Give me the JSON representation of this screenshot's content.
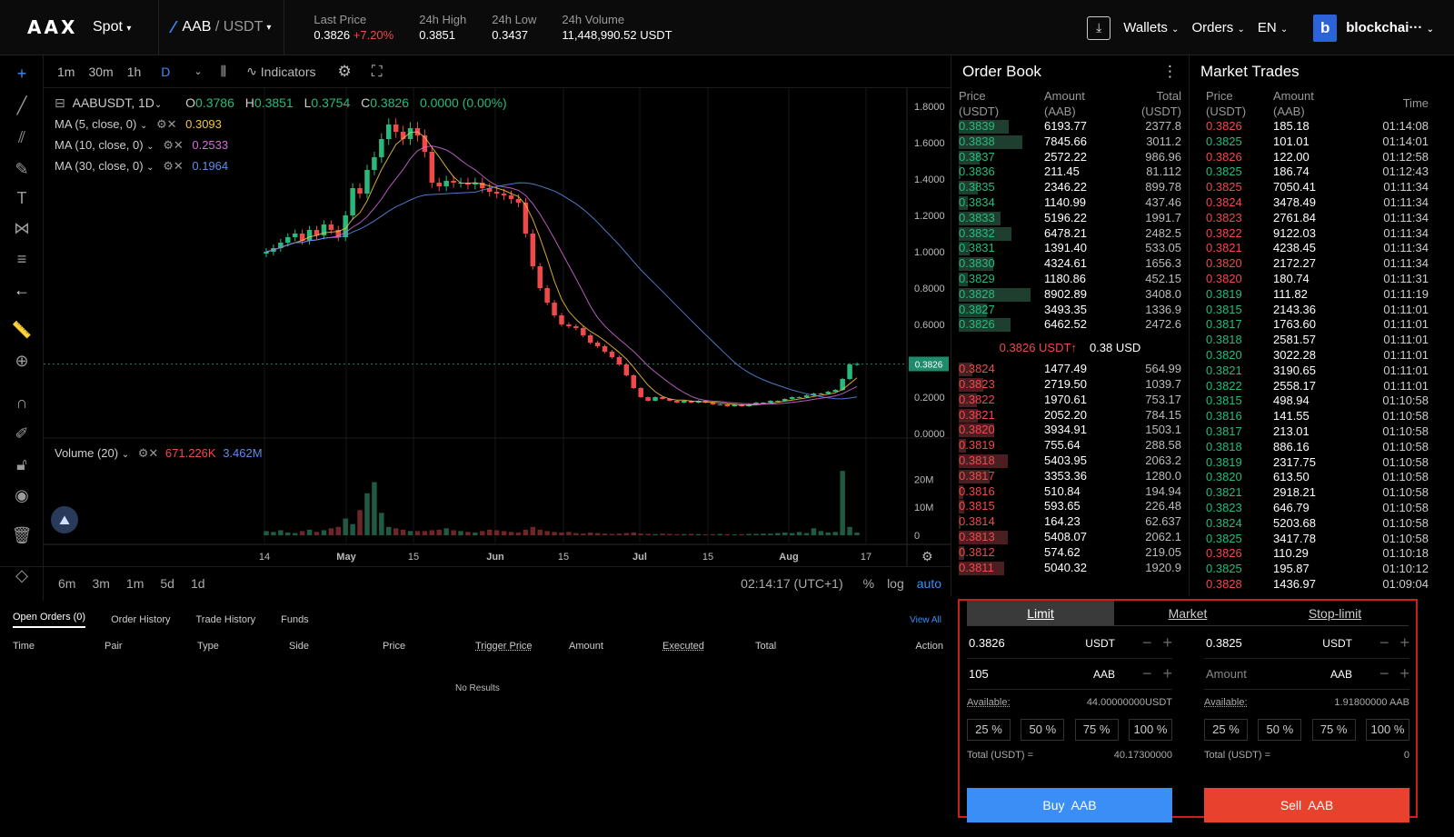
{
  "header": {
    "logo": "AAX",
    "market_type": "Spot",
    "pair_base": "AAB",
    "pair_quote": "USDT",
    "stats": [
      {
        "label": "Last Price",
        "value": "0.3826",
        "change": "+7.20%"
      },
      {
        "label": "24h High",
        "value": "0.3851"
      },
      {
        "label": "24h Low",
        "value": "0.3437"
      },
      {
        "label": "24h Volume",
        "value": "11,448,990.52 USDT"
      }
    ],
    "nav": {
      "wallets": "Wallets",
      "orders": "Orders",
      "lang": "EN"
    },
    "avatar_letter": "b",
    "account": "blockchai···"
  },
  "chart_toolbar": {
    "intervals": [
      "1m",
      "30m",
      "1h",
      "D"
    ],
    "active_interval": "D",
    "indicators": "Indicators"
  },
  "chart_legend": {
    "symbol": "AABUSDT, 1D",
    "open": "0.3786",
    "high": "0.3851",
    "low": "0.3754",
    "close": "0.3826",
    "change": "0.0000 (0.00%)",
    "ma": [
      {
        "label": "MA (5, close, 0)",
        "value": "0.3093",
        "color": "#f5c542"
      },
      {
        "label": "MA (10, close, 0)",
        "value": "0.2533",
        "color": "#d86adf"
      },
      {
        "label": "MA (30, close, 0)",
        "value": "0.1964",
        "color": "#5b8ee8"
      }
    ],
    "volume_label": "Volume (20)",
    "volume_values": [
      "671.226K",
      "3.462M"
    ]
  },
  "chart_data": {
    "type": "line",
    "ylim": [
      0,
      1.8
    ],
    "price_ticks": [
      "1.8000",
      "1.6000",
      "1.4000",
      "1.2000",
      "1.0000",
      "0.8000",
      "0.6000",
      "0.4000",
      "0.2000",
      "0.0000"
    ],
    "volume_ticks": [
      "20M",
      "10M",
      "0"
    ],
    "x_ticks": [
      "14",
      "May",
      "15",
      "Jun",
      "15",
      "Jul",
      "15",
      "Aug",
      "17"
    ],
    "current_price_label": "0.3826",
    "close": [
      1.0,
      1.02,
      1.05,
      1.08,
      1.1,
      1.06,
      1.12,
      1.09,
      1.15,
      1.12,
      1.08,
      1.2,
      1.35,
      1.32,
      1.45,
      1.52,
      1.62,
      1.7,
      1.66,
      1.62,
      1.68,
      1.64,
      1.55,
      1.38,
      1.36,
      1.39,
      1.38,
      1.38,
      1.37,
      1.38,
      1.35,
      1.33,
      1.32,
      1.31,
      1.29,
      1.27,
      1.1,
      0.92,
      0.8,
      0.72,
      0.65,
      0.6,
      0.59,
      0.58,
      0.54,
      0.5,
      0.48,
      0.45,
      0.42,
      0.38,
      0.32,
      0.25,
      0.2,
      0.18,
      0.2,
      0.19,
      0.18,
      0.17,
      0.18,
      0.17,
      0.18,
      0.17,
      0.16,
      0.16,
      0.15,
      0.16,
      0.15,
      0.16,
      0.17,
      0.17,
      0.18,
      0.18,
      0.19,
      0.2,
      0.2,
      0.21,
      0.22,
      0.22,
      0.23,
      0.24,
      0.3,
      0.38,
      0.3826
    ],
    "volume_m": [
      1.5,
      1.2,
      1.8,
      1.0,
      0.8,
      1.5,
      2.0,
      1.2,
      1.8,
      2.5,
      3.0,
      6.0,
      4.0,
      9.0,
      15.0,
      19.0,
      8.0,
      3.0,
      2.5,
      2.0,
      1.5,
      1.5,
      1.5,
      1.8,
      2.0,
      2.5,
      1.8,
      1.5,
      1.2,
      1.0,
      1.5,
      2.0,
      1.8,
      1.5,
      1.2,
      1.0,
      2.0,
      3.0,
      2.0,
      1.5,
      1.2,
      1.0,
      1.2,
      0.8,
      0.6,
      1.0,
      0.8,
      0.6,
      0.5,
      0.6,
      0.8,
      1.0,
      0.6,
      0.5,
      0.4,
      0.6,
      0.5,
      0.4,
      0.4,
      0.5,
      0.4,
      0.3,
      0.4,
      0.5,
      0.4,
      0.3,
      0.4,
      0.5,
      0.5,
      0.6,
      0.6,
      0.8,
      1.0,
      0.8,
      1.2,
      0.8,
      2.5,
      1.5,
      1.0,
      1.2,
      23.0,
      3.0,
      1.0
    ]
  },
  "chart_bottom": {
    "ranges": [
      "6m",
      "3m",
      "1m",
      "5d",
      "1d"
    ],
    "clock": "02:14:17 (UTC+1)",
    "options": [
      "%",
      "log",
      "auto"
    ]
  },
  "orders_panel": {
    "tabs": [
      "Open Orders (0)",
      "Order History",
      "Trade History",
      "Funds"
    ],
    "view_all": "View All",
    "columns": [
      "Time",
      "Pair",
      "Type",
      "Side",
      "Price",
      "Trigger Price",
      "Amount",
      "Executed",
      "Total",
      "Action"
    ],
    "empty": "No Results"
  },
  "order_book": {
    "title": "Order Book",
    "headers": [
      "Price\n(USDT)",
      "Amount\n(AAB)",
      "Total\n(USDT)"
    ],
    "asks": [
      [
        "0.3839",
        "6193.77",
        "2377.8"
      ],
      [
        "0.3838",
        "7845.66",
        "3011.2"
      ],
      [
        "0.3837",
        "2572.22",
        "986.96"
      ],
      [
        "0.3836",
        "211.45",
        "81.112"
      ],
      [
        "0.3835",
        "2346.22",
        "899.78"
      ],
      [
        "0.3834",
        "1140.99",
        "437.46"
      ],
      [
        "0.3833",
        "5196.22",
        "1991.7"
      ],
      [
        "0.3832",
        "6478.21",
        "2482.5"
      ],
      [
        "0.3831",
        "1391.40",
        "533.05"
      ],
      [
        "0.3830",
        "4324.61",
        "1656.3"
      ],
      [
        "0.3829",
        "1180.86",
        "452.15"
      ],
      [
        "0.3828",
        "8902.89",
        "3408.0"
      ],
      [
        "0.3827",
        "3493.35",
        "1336.9"
      ],
      [
        "0.3826",
        "6462.52",
        "2472.6"
      ]
    ],
    "mid_price": "0.3826 USDT",
    "mid_usd": "0.38 USD",
    "bids": [
      [
        "0.3824",
        "1477.49",
        "564.99"
      ],
      [
        "0.3823",
        "2719.50",
        "1039.7"
      ],
      [
        "0.3822",
        "1970.61",
        "753.17"
      ],
      [
        "0.3821",
        "2052.20",
        "784.15"
      ],
      [
        "0.3820",
        "3934.91",
        "1503.1"
      ],
      [
        "0.3819",
        "755.64",
        "288.58"
      ],
      [
        "0.3818",
        "5403.95",
        "2063.2"
      ],
      [
        "0.3817",
        "3353.36",
        "1280.0"
      ],
      [
        "0.3816",
        "510.84",
        "194.94"
      ],
      [
        "0.3815",
        "593.65",
        "226.48"
      ],
      [
        "0.3814",
        "164.23",
        "62.637"
      ],
      [
        "0.3813",
        "5408.07",
        "2062.1"
      ],
      [
        "0.3812",
        "574.62",
        "219.05"
      ],
      [
        "0.3811",
        "5040.32",
        "1920.9"
      ]
    ]
  },
  "market_trades": {
    "title": "Market Trades",
    "headers": [
      "Price\n(USDT)",
      "Amount\n(AAB)",
      "Time"
    ],
    "rows": [
      [
        "0.3826",
        "185.18",
        "01:14:08",
        "sell"
      ],
      [
        "0.3825",
        "101.01",
        "01:14:01",
        "buy"
      ],
      [
        "0.3826",
        "122.00",
        "01:12:58",
        "sell"
      ],
      [
        "0.3825",
        "186.74",
        "01:12:43",
        "buy"
      ],
      [
        "0.3825",
        "7050.41",
        "01:11:34",
        "sell"
      ],
      [
        "0.3824",
        "3478.49",
        "01:11:34",
        "sell"
      ],
      [
        "0.3823",
        "2761.84",
        "01:11:34",
        "sell"
      ],
      [
        "0.3822",
        "9122.03",
        "01:11:34",
        "sell"
      ],
      [
        "0.3821",
        "4238.45",
        "01:11:34",
        "sell"
      ],
      [
        "0.3820",
        "2172.27",
        "01:11:34",
        "sell"
      ],
      [
        "0.3820",
        "180.74",
        "01:11:31",
        "sell"
      ],
      [
        "0.3819",
        "111.82",
        "01:11:19",
        "buy"
      ],
      [
        "0.3815",
        "2143.36",
        "01:11:01",
        "buy"
      ],
      [
        "0.3817",
        "1763.60",
        "01:11:01",
        "buy"
      ],
      [
        "0.3818",
        "2581.57",
        "01:11:01",
        "buy"
      ],
      [
        "0.3820",
        "3022.28",
        "01:11:01",
        "buy"
      ],
      [
        "0.3821",
        "3190.65",
        "01:11:01",
        "buy"
      ],
      [
        "0.3822",
        "2558.17",
        "01:11:01",
        "buy"
      ],
      [
        "0.3815",
        "498.94",
        "01:10:58",
        "buy"
      ],
      [
        "0.3816",
        "141.55",
        "01:10:58",
        "buy"
      ],
      [
        "0.3817",
        "213.01",
        "01:10:58",
        "buy"
      ],
      [
        "0.3818",
        "886.16",
        "01:10:58",
        "buy"
      ],
      [
        "0.3819",
        "2317.75",
        "01:10:58",
        "buy"
      ],
      [
        "0.3820",
        "613.50",
        "01:10:58",
        "buy"
      ],
      [
        "0.3821",
        "2918.21",
        "01:10:58",
        "buy"
      ],
      [
        "0.3823",
        "646.79",
        "01:10:58",
        "buy"
      ],
      [
        "0.3824",
        "5203.68",
        "01:10:58",
        "buy"
      ],
      [
        "0.3825",
        "3417.78",
        "01:10:58",
        "buy"
      ],
      [
        "0.3826",
        "110.29",
        "01:10:18",
        "sell"
      ],
      [
        "0.3825",
        "195.87",
        "01:10:12",
        "buy"
      ],
      [
        "0.3828",
        "1436.97",
        "01:09:04",
        "sell"
      ]
    ]
  },
  "trade_form": {
    "tabs": [
      "Limit",
      "Market",
      "Stop-limit"
    ],
    "buy": {
      "price": "0.3826",
      "price_unit": "USDT",
      "amount": "105",
      "amount_unit": "AAB",
      "available_label": "Available:",
      "available": "44.00000000USDT",
      "pcts": [
        "25 %",
        "50 %",
        "75 %",
        "100 %"
      ],
      "total_label": "Total (USDT) =",
      "total": "40.17300000",
      "button": "Buy  AAB"
    },
    "sell": {
      "price": "0.3825",
      "price_unit": "USDT",
      "amount_placeholder": "Amount",
      "amount_unit": "AAB",
      "available_label": "Available:",
      "available": "1.91800000 AAB",
      "pcts": [
        "25 %",
        "50 %",
        "75 %",
        "100 %"
      ],
      "total_label": "Total (USDT) =",
      "total": "0",
      "button": "Sell  AAB"
    }
  },
  "colors": {
    "up": "#27ba7c",
    "down": "#f0494a",
    "buy": "#3a8ef6",
    "sell": "#e8412e"
  }
}
